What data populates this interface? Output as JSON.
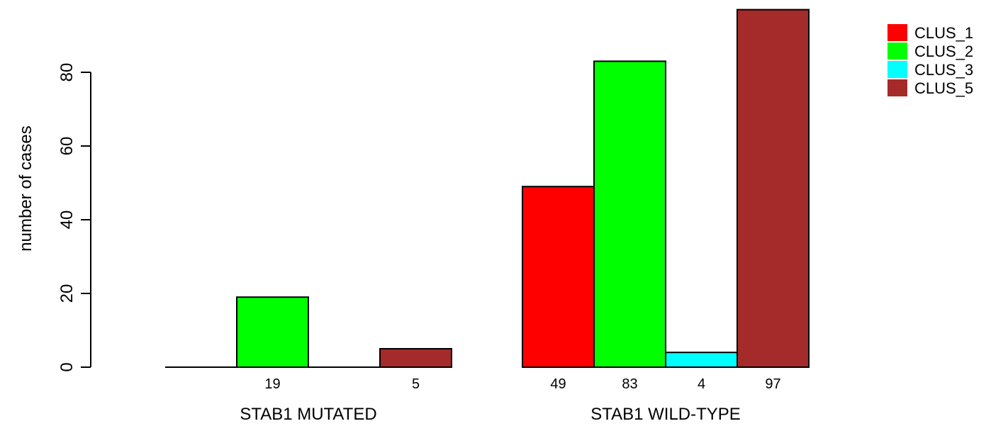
{
  "chart_data": {
    "type": "bar",
    "ylabel": "number of cases",
    "ylim": [
      0,
      100
    ],
    "yticks": [
      0,
      20,
      40,
      60,
      80
    ],
    "groups": [
      "STAB1 MUTATED",
      "STAB1 WILD-TYPE"
    ],
    "series": [
      {
        "name": "CLUS_1",
        "color": "#FF0000",
        "values": [
          0,
          49
        ],
        "labels": [
          "",
          "49"
        ]
      },
      {
        "name": "CLUS_2",
        "color": "#00FF00",
        "values": [
          19,
          83
        ],
        "labels": [
          "19",
          "83"
        ]
      },
      {
        "name": "CLUS_3",
        "color": "#00FFFF",
        "values": [
          0,
          4
        ],
        "labels": [
          "",
          "4"
        ]
      },
      {
        "name": "CLUS_5",
        "color": "#A52A2A",
        "values": [
          5,
          97
        ],
        "labels": [
          "5",
          "97"
        ]
      }
    ],
    "legend_position": "top-right"
  }
}
